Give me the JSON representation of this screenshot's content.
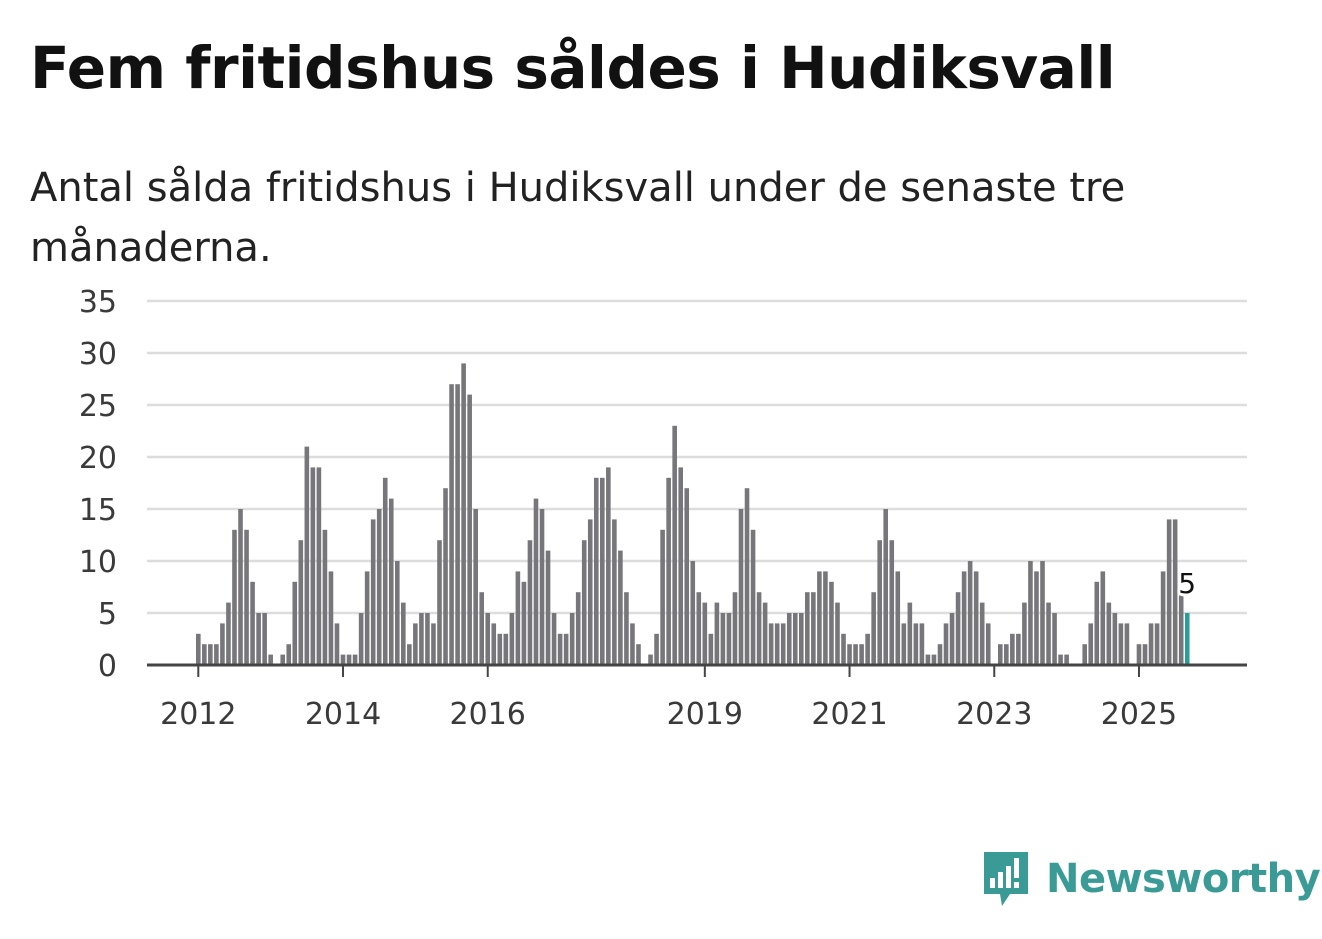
{
  "title": "Fem fritidshus såldes i Hudiksvall",
  "subtitle": "Antal sålda fritidshus i Hudiksvall under de senaste tre månaderna.",
  "brand": {
    "name": "Newsworthy",
    "color": "#3a9b96",
    "icon": "newsworthy-logo-icon"
  },
  "colors": {
    "bar": "#77767a",
    "highlight": "#2a9d96",
    "grid": "#dddddd",
    "axis": "#444444"
  },
  "chart_data": {
    "type": "bar",
    "title": "Fem fritidshus såldes i Hudiksvall",
    "xlabel": "",
    "ylabel": "",
    "ylim": [
      0,
      35
    ],
    "yticks": [
      0,
      5,
      10,
      15,
      20,
      25,
      30,
      35
    ],
    "xticks": [
      {
        "label": "2012",
        "index": 0
      },
      {
        "label": "2014",
        "index": 24
      },
      {
        "label": "2016",
        "index": 48
      },
      {
        "label": "2019",
        "index": 84
      },
      {
        "label": "2021",
        "index": 108
      },
      {
        "label": "2023",
        "index": 132
      },
      {
        "label": "2025",
        "index": 156
      }
    ],
    "start": "2012-01",
    "grid": true,
    "values": [
      3,
      2,
      2,
      2,
      4,
      6,
      13,
      15,
      13,
      8,
      5,
      5,
      1,
      0,
      1,
      2,
      8,
      12,
      21,
      19,
      19,
      13,
      9,
      4,
      1,
      1,
      1,
      5,
      9,
      14,
      15,
      18,
      16,
      10,
      6,
      2,
      4,
      5,
      5,
      4,
      12,
      17,
      27,
      27,
      29,
      26,
      15,
      7,
      5,
      4,
      3,
      3,
      5,
      9,
      8,
      12,
      16,
      15,
      11,
      5,
      3,
      3,
      5,
      7,
      12,
      14,
      18,
      18,
      19,
      14,
      11,
      7,
      4,
      2,
      0,
      1,
      3,
      13,
      18,
      23,
      19,
      17,
      10,
      7,
      6,
      3,
      6,
      5,
      5,
      7,
      15,
      17,
      13,
      7,
      6,
      4,
      4,
      4,
      5,
      5,
      5,
      7,
      7,
      9,
      9,
      8,
      6,
      3,
      2,
      2,
      2,
      3,
      7,
      12,
      15,
      12,
      9,
      4,
      6,
      4,
      4,
      1,
      1,
      2,
      4,
      5,
      7,
      9,
      10,
      9,
      6,
      4,
      0,
      2,
      2,
      3,
      3,
      6,
      10,
      9,
      10,
      6,
      5,
      1,
      1,
      0,
      0,
      2,
      4,
      8,
      9,
      6,
      5,
      4,
      4,
      0,
      2,
      2,
      4,
      4,
      9,
      14,
      14,
      7,
      5
    ],
    "highlight_index": 164,
    "annotation": {
      "index": 164,
      "label": "5"
    }
  }
}
